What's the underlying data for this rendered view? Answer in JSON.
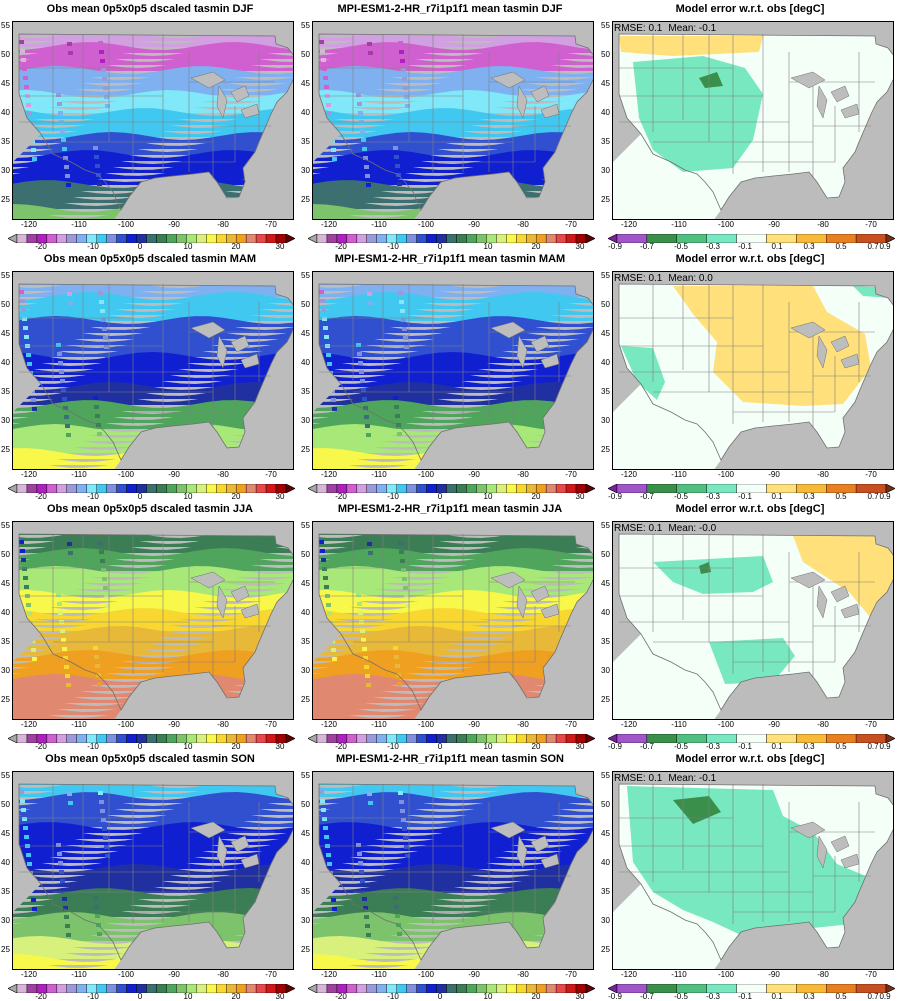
{
  "panels": [
    [
      {
        "title": "Obs mean 0p5x0p5 dscaled tasmin DJF",
        "kind": "temp",
        "season": "DJF"
      },
      {
        "title": "MPI-ESM1-2-HR_r7i1p1f1 mean tasmin DJF",
        "kind": "temp",
        "season": "DJF"
      },
      {
        "title": "Model error w.r.t. obs [degC]",
        "kind": "err",
        "season": "DJF",
        "rmse": "RMSE: 0.1",
        "mean": "Mean: -0.1"
      }
    ],
    [
      {
        "title": "Obs mean 0p5x0p5 dscaled tasmin MAM",
        "kind": "temp",
        "season": "MAM"
      },
      {
        "title": "MPI-ESM1-2-HR_r7i1p1f1 mean tasmin MAM",
        "kind": "temp",
        "season": "MAM"
      },
      {
        "title": "Model error w.r.t. obs [degC]",
        "kind": "err",
        "season": "MAM",
        "rmse": "RMSE: 0.1",
        "mean": "Mean: 0.0"
      }
    ],
    [
      {
        "title": "Obs mean 0p5x0p5 dscaled tasmin JJA",
        "kind": "temp",
        "season": "JJA"
      },
      {
        "title": "MPI-ESM1-2-HR_r7i1p1f1 mean tasmin JJA",
        "kind": "temp",
        "season": "JJA"
      },
      {
        "title": "Model error w.r.t. obs [degC]",
        "kind": "err",
        "season": "JJA",
        "rmse": "RMSE: 0.1",
        "mean": "Mean: -0.0"
      }
    ],
    [
      {
        "title": "Obs mean 0p5x0p5 dscaled tasmin SON",
        "kind": "temp",
        "season": "SON"
      },
      {
        "title": "MPI-ESM1-2-HR_r7i1p1f1 mean tasmin SON",
        "kind": "temp",
        "season": "SON"
      },
      {
        "title": "Model error w.r.t. obs [degC]",
        "kind": "err",
        "season": "SON",
        "rmse": "RMSE: 0.1",
        "mean": "Mean: -0.1"
      }
    ]
  ],
  "lon_ticks": [
    "-120",
    "-110",
    "-100",
    "-90",
    "-80",
    "-70"
  ],
  "lat_ticks": [
    "55",
    "50",
    "45",
    "40",
    "35",
    "30",
    "25"
  ],
  "temp_colorbar": {
    "labels": [
      "-20",
      "-10",
      "0",
      "10",
      "20",
      "30"
    ],
    "colors": [
      "#a8a8a8",
      "#d8b6d8",
      "#a040a0",
      "#b020c0",
      "#d060d0",
      "#d0a0e0",
      "#9a9ad8",
      "#7fb0f0",
      "#80e8f8",
      "#40c8f0",
      "#8090e0",
      "#3050d0",
      "#1020d0",
      "#2030a0",
      "#3c6f6f",
      "#3b7d54",
      "#4fa55c",
      "#7cc36c",
      "#a8e878",
      "#d8f07c",
      "#f8f84a",
      "#f8d830",
      "#e8b838",
      "#f0a020",
      "#e08870",
      "#e84848",
      "#d01818",
      "#a00000",
      "#600000"
    ]
  },
  "err_colorbar": {
    "labels": [
      "-0.9",
      "-0.7",
      "-0.5",
      "-0.3",
      "-0.1",
      "0.1",
      "0.3",
      "0.5",
      "0.7",
      "0.9"
    ],
    "colors": [
      "#7a1fa0",
      "#a055c8",
      "#3a8f4a",
      "#4fc080",
      "#78e8c0",
      "#f4fff8",
      "#ffe07a",
      "#f8b838",
      "#e88020",
      "#c85020",
      "#7a3010"
    ]
  },
  "colors": {
    "land_background": "#bcbcbc",
    "ocean": "#bcbcbc",
    "borders": "#808080",
    "missing": "#bdbdbd"
  }
}
